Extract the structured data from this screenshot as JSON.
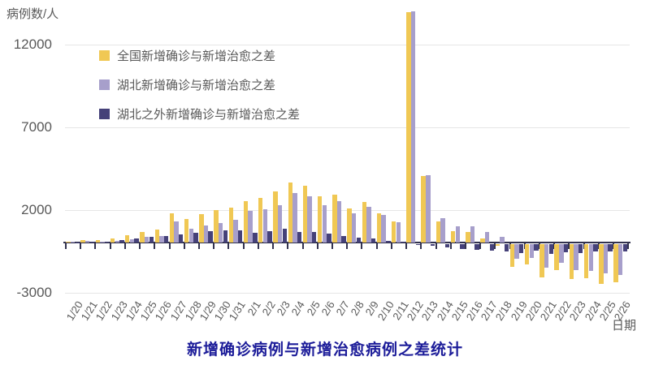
{
  "chart_data": {
    "type": "bar",
    "title": "新增确诊病例与新增治愈病例之差统计",
    "y_axis": {
      "label": "病例数/人",
      "ticks": [
        {
          "label": "12000",
          "value": 12000
        },
        {
          "label": "7000",
          "value": 7000
        },
        {
          "label": "2000",
          "value": 2000
        },
        {
          "label": "-3000",
          "value": -3000
        }
      ],
      "ylim": [
        -3000,
        14200
      ]
    },
    "x_axis": {
      "label": "日期"
    },
    "grid": true,
    "legend_position": "top-left-inside",
    "categories": [
      "1/20",
      "1/21",
      "1/22",
      "1/23",
      "1/24",
      "1/25",
      "1/26",
      "1/27",
      "1/28",
      "1/29",
      "1/30",
      "1/31",
      "2/1",
      "2/2",
      "2/3",
      "2/4",
      "2/5",
      "2/6",
      "2/7",
      "2/8",
      "2/9",
      "2/10",
      "2/11",
      "2/12",
      "2/13",
      "2/14",
      "2/15",
      "2/16",
      "2/17",
      "2/18",
      "2/19",
      "2/20",
      "2/21",
      "2/22",
      "2/23",
      "2/24",
      "2/25",
      "2/26"
    ],
    "series": [
      {
        "name": "全国新增确诊与新增治愈之差",
        "color": "#F0C854",
        "values": [
          70,
          150,
          130,
          250,
          440,
          650,
          770,
          1780,
          1420,
          1720,
          1940,
          2100,
          2520,
          2680,
          3080,
          3630,
          3430,
          2780,
          2890,
          2060,
          2430,
          1760,
          1270,
          13900,
          4000,
          1270,
          690,
          620,
          250,
          -80,
          -1390,
          -1220,
          -2000,
          -1580,
          -2100,
          -2080,
          -2380,
          -2320
        ]
      },
      {
        "name": "湖北新增确诊与新增治愈之差",
        "color": "#A79FCB",
        "values": [
          60,
          105,
          70,
          105,
          180,
          320,
          370,
          1280,
          840,
          1010,
          1190,
          1350,
          1920,
          2000,
          2240,
          3000,
          2800,
          2250,
          2490,
          1760,
          2180,
          1670,
          1220,
          13960,
          4090,
          1450,
          990,
          970,
          640,
          350,
          -860,
          -850,
          -1420,
          -1110,
          -1550,
          -1620,
          -1760,
          -1880
        ]
      },
      {
        "name": "湖北之外新增确诊与新增治愈之差",
        "color": "#454179",
        "values": [
          10,
          45,
          60,
          145,
          260,
          330,
          400,
          500,
          580,
          710,
          750,
          750,
          600,
          680,
          840,
          630,
          630,
          530,
          400,
          300,
          250,
          90,
          50,
          -60,
          -90,
          -180,
          -300,
          -350,
          -390,
          -430,
          -530,
          -370,
          -580,
          -470,
          -550,
          -460,
          -430,
          -440
        ]
      }
    ],
    "colors": {
      "title": "#1C1C99",
      "text": "#595959",
      "axis": "#32324E",
      "gridline": "#E6E6E6",
      "background": "#FFFFFF"
    }
  }
}
